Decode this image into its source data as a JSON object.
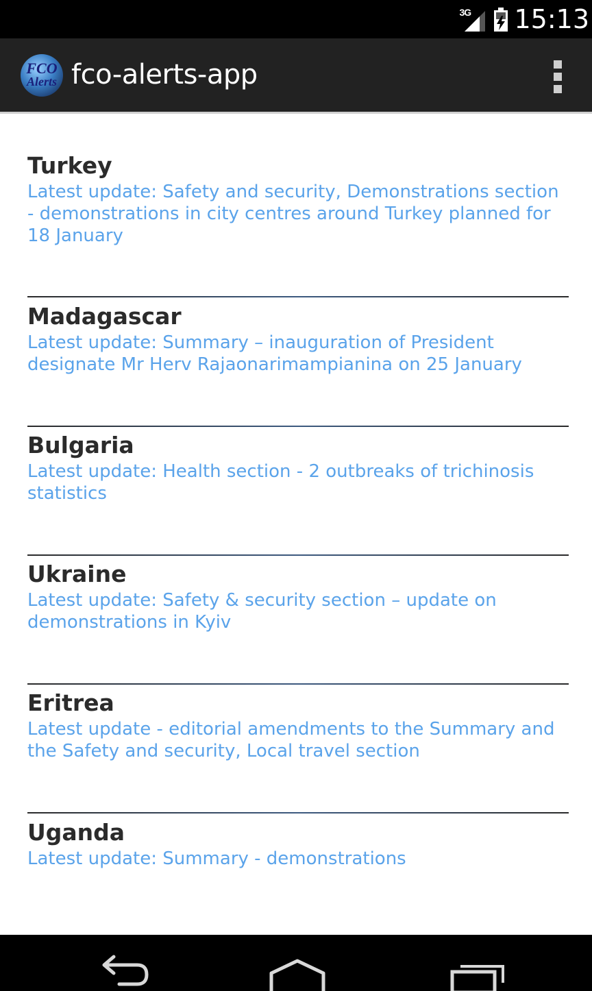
{
  "status_bar": {
    "network_type": "3G",
    "time": "15:13",
    "icons": [
      "signal-icon",
      "battery-icon"
    ]
  },
  "action_bar": {
    "app_icon": "fco-alerts-logo",
    "app_icon_text_line1": "FCO",
    "app_icon_text_line2": "Alerts",
    "title": "fco-alerts-app",
    "overflow_icon": "overflow-menu-icon"
  },
  "alerts": [
    {
      "country": "Turkey",
      "summary": "Latest update: Safety and security, Demonstrations section - demonstrations in city centres around Turkey planned for 18 January"
    },
    {
      "country": "Madagascar",
      "summary": "Latest update: Summary – inauguration of President designate Mr Herv Rajaonarimampianina on 25 January"
    },
    {
      "country": "Bulgaria",
      "summary": "Latest update: Health section - 2 outbreaks of trichinosis statistics"
    },
    {
      "country": "Ukraine",
      "summary": "Latest update: Safety & security section – update on demonstrations in Kyiv"
    },
    {
      "country": "Eritrea",
      "summary": "Latest update - editorial amendments to the Summary and the Safety and security, Local travel section"
    },
    {
      "country": "Uganda",
      "summary": "Latest update: Summary - demonstrations"
    }
  ],
  "nav_bar": {
    "icons": [
      "back-icon",
      "home-icon",
      "recent-apps-icon"
    ]
  },
  "colors": {
    "action_bar_bg": "#222222",
    "title_text": "#2b2b2b",
    "summary_text": "#5aa3ea",
    "divider": "#2a2a2a"
  }
}
